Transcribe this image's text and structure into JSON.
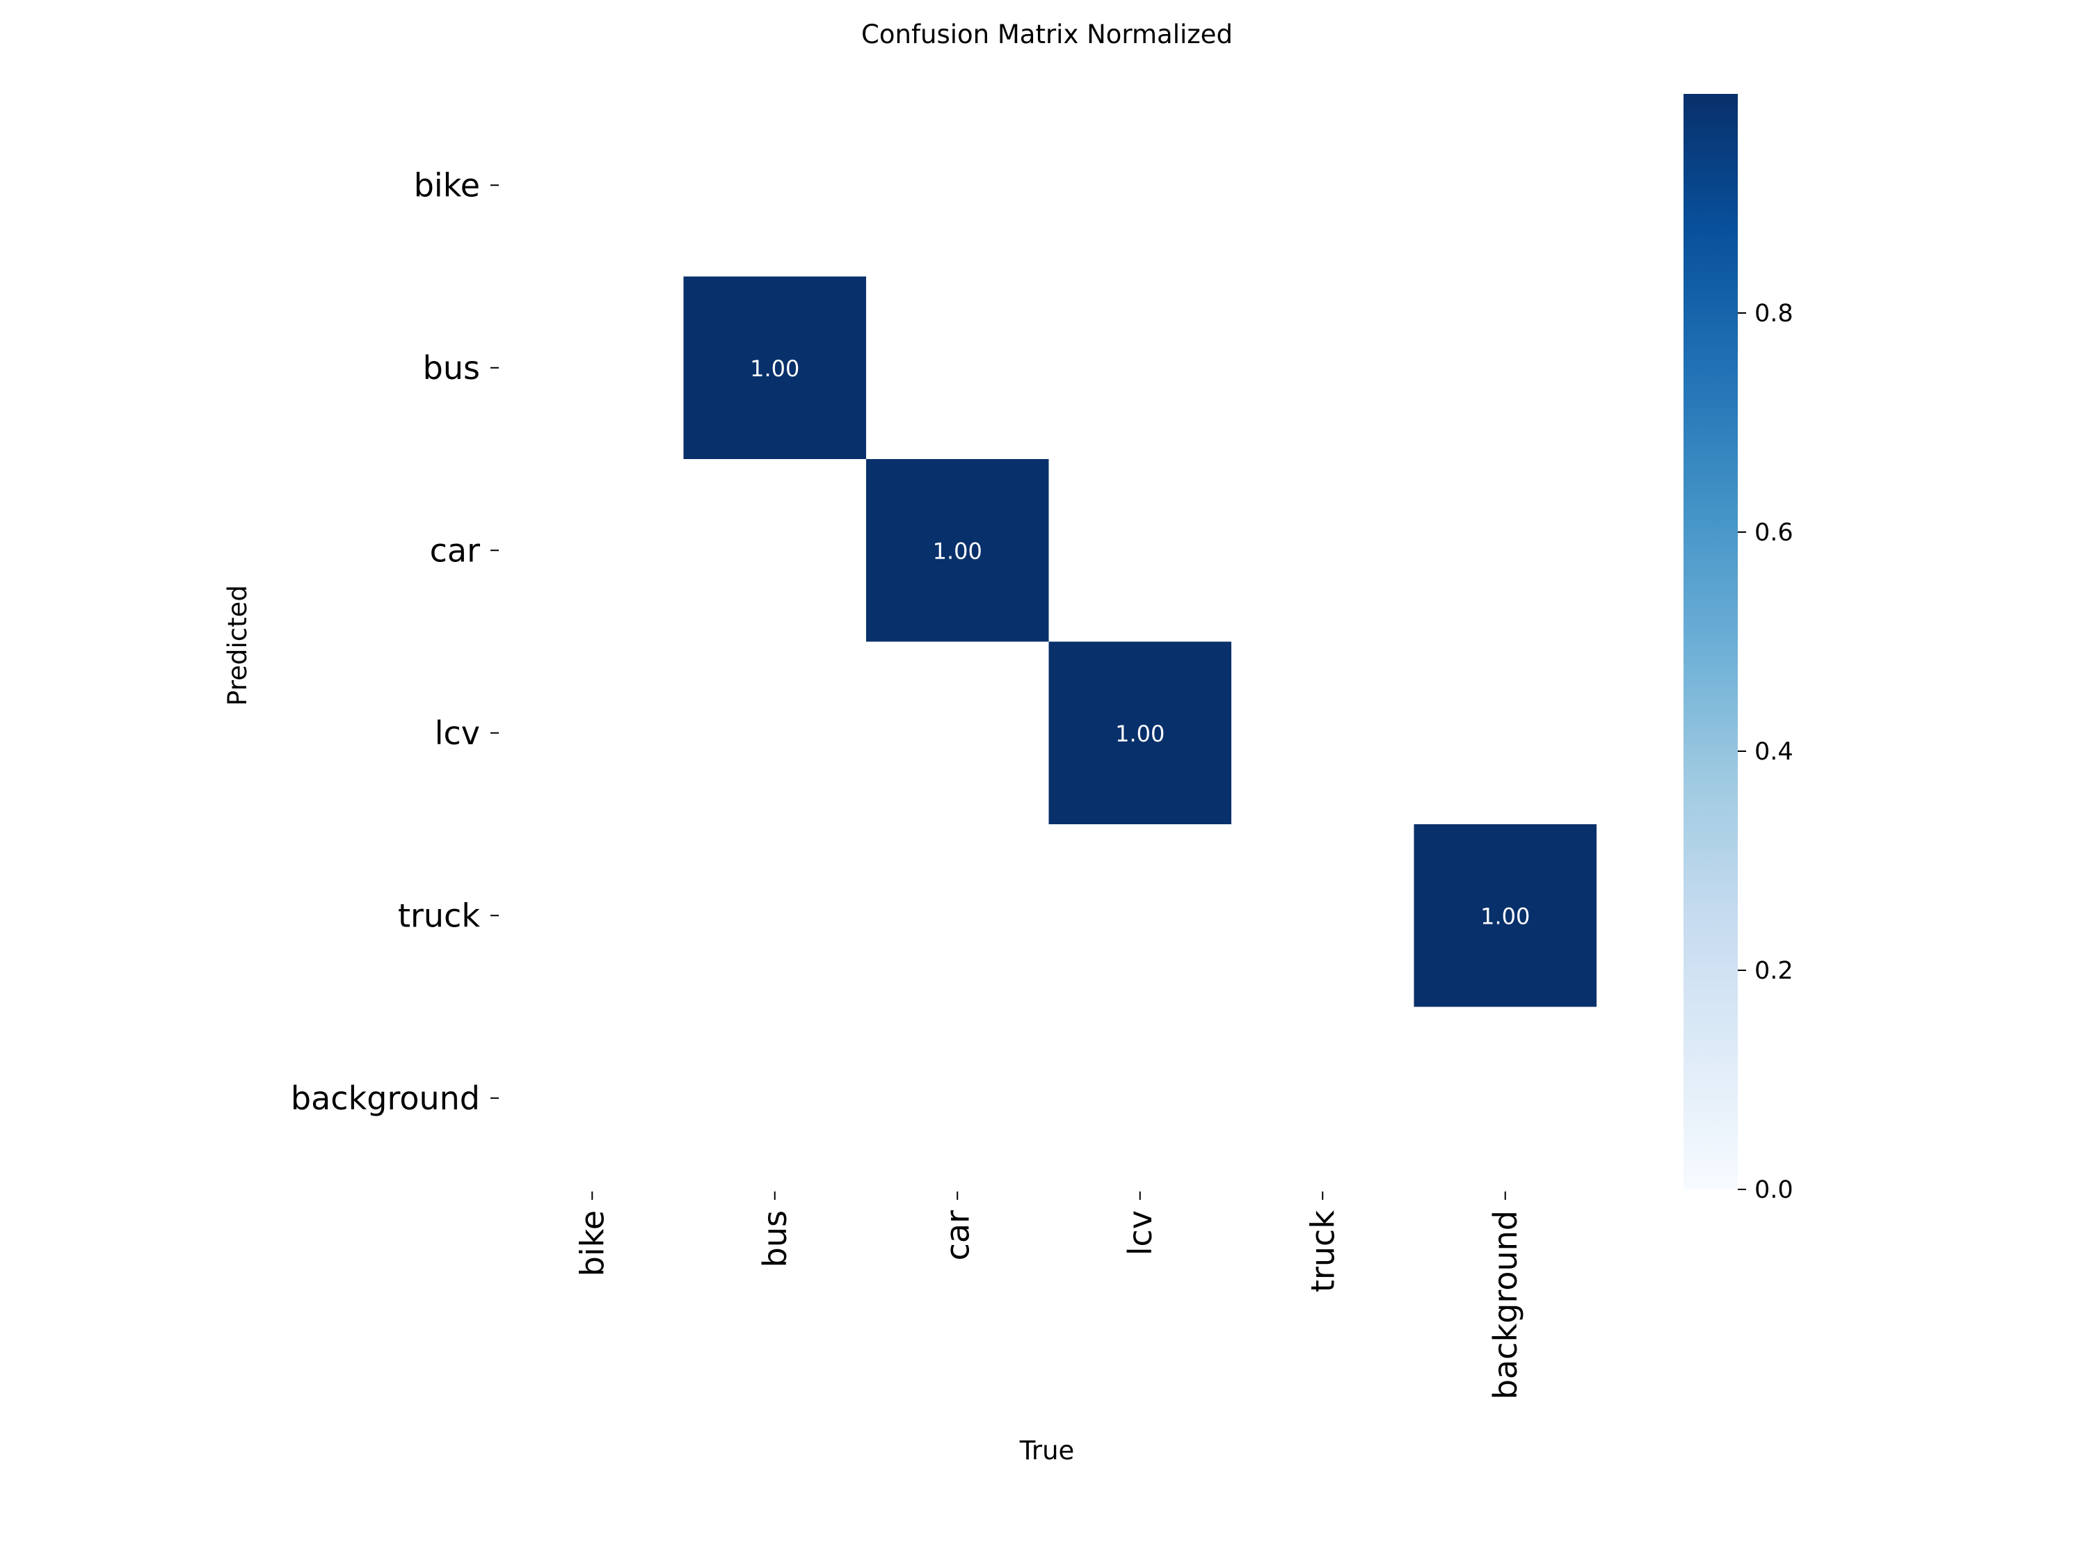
{
  "chart_data": {
    "type": "heatmap",
    "title": "Confusion Matrix Normalized",
    "xlabel": "True",
    "ylabel": "Predicted",
    "x_categories": [
      "bike",
      "bus",
      "car",
      "lcv",
      "truck",
      "background"
    ],
    "y_categories": [
      "bike",
      "bus",
      "car",
      "lcv",
      "truck",
      "background"
    ],
    "cells": [
      {
        "x": "bus",
        "y": "bus",
        "value": 1.0,
        "label": "1.00"
      },
      {
        "x": "car",
        "y": "car",
        "value": 1.0,
        "label": "1.00"
      },
      {
        "x": "lcv",
        "y": "lcv",
        "value": 1.0,
        "label": "1.00"
      },
      {
        "x": "background",
        "y": "truck",
        "value": 1.0,
        "label": "1.00"
      }
    ],
    "colorbar": {
      "colormap": "Blues",
      "ticks": [
        "0.0",
        "0.2",
        "0.4",
        "0.6",
        "0.8"
      ],
      "range": [
        0,
        1
      ],
      "low_color": "#f7fbff",
      "high_color": "#08306b"
    },
    "grid": false
  }
}
